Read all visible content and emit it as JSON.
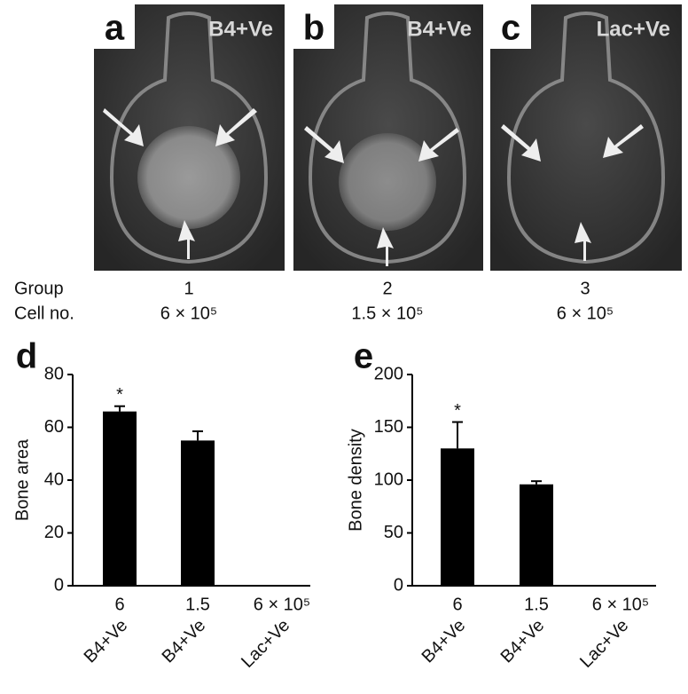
{
  "panels": [
    {
      "letter": "a",
      "label": "B4+Ve"
    },
    {
      "letter": "b",
      "label": "B4+Ve"
    },
    {
      "letter": "c",
      "label": "Lac+Ve"
    }
  ],
  "table": {
    "row_labels": [
      "Group",
      "Cell no."
    ],
    "groups": [
      "1",
      "2",
      "3"
    ],
    "cell_numbers": [
      "6 × 10⁵",
      "1.5 × 10⁵",
      "6 × 10⁵"
    ]
  },
  "chart_data": [
    {
      "type": "bar",
      "letter": "d",
      "y_label": "Bone area",
      "categories": [
        "6",
        "1.5",
        "6 × 10⁵"
      ],
      "groups": [
        "B4+Ve",
        "B4+Ve",
        "Lac+Ve"
      ],
      "values": [
        66,
        55,
        0
      ],
      "errors": [
        2,
        3.5,
        0
      ],
      "annotations": [
        "*",
        null,
        null
      ],
      "color": "#000000",
      "ylim": [
        0,
        80
      ],
      "yticks": [
        0,
        20,
        40,
        60,
        80
      ]
    },
    {
      "type": "bar",
      "letter": "e",
      "y_label": "Bone density",
      "categories": [
        "6",
        "1.5",
        "6 × 10⁵"
      ],
      "groups": [
        "B4+Ve",
        "B4+Ve",
        "Lac+Ve"
      ],
      "values": [
        130,
        96,
        0
      ],
      "errors": [
        25,
        3,
        0
      ],
      "annotations": [
        "*",
        null,
        null
      ],
      "color": "#000000",
      "ylim": [
        0,
        200
      ],
      "yticks": [
        0,
        50,
        100,
        150,
        200
      ]
    }
  ]
}
